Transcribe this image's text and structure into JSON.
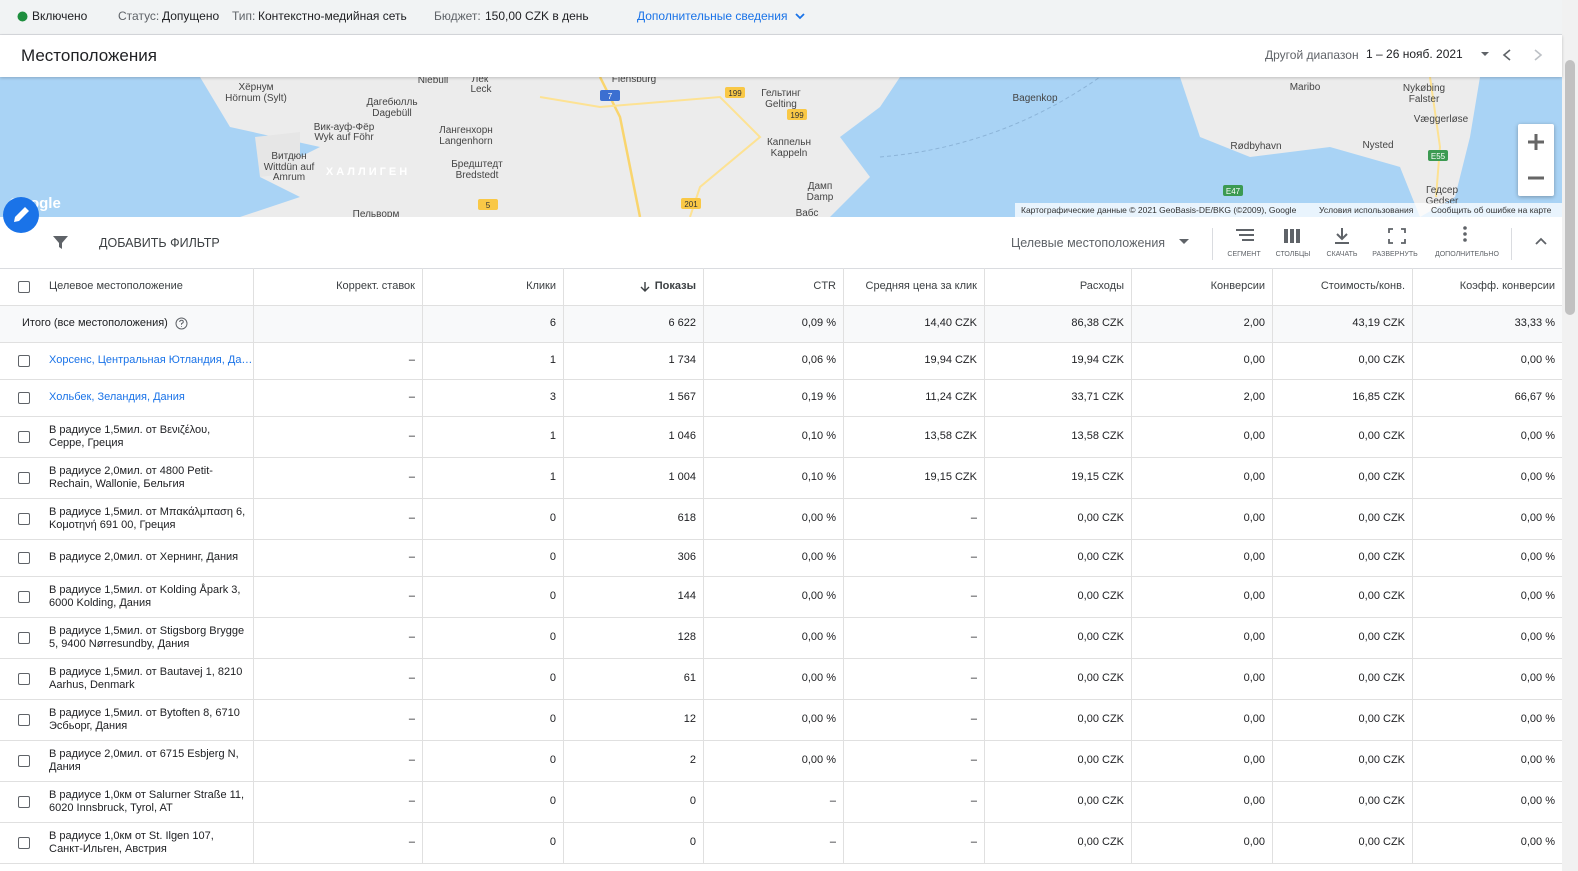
{
  "status_bar": {
    "state": "Включено",
    "status_label": "Статус:",
    "status": "Допущено",
    "type_label": "Тип:",
    "type": "Контекстно-медийная сеть",
    "budget_label": "Бюджет:",
    "budget": "150,00 CZK в день",
    "more": "Дополнительные сведения"
  },
  "header": {
    "title": "Местоположения",
    "range_label": "Другой диапазон",
    "range": "1 – 26 нояб. 2021"
  },
  "map": {
    "labels": [
      "Хёрнум",
      "Hörnum (Sylt)",
      "Niebüll",
      "Лек",
      "Leck",
      "Flensburg",
      "Гельтинг",
      "Gelting",
      "Дагебюлль",
      "Dagebüll",
      "Вик-ауф-Фёр",
      "Wyk auf Föhr",
      "Лангенхорн",
      "Langenhorn",
      "Витдюн",
      "Wittdün auf",
      "Amrum",
      "ХАЛЛИГЕН",
      "Бредштедт",
      "Bredstedt",
      "Каппельн",
      "Kappeln",
      "Дамп",
      "Damp",
      "Пельворм",
      "Вабс",
      "Bagenkop",
      "Maribo",
      "Nykøbing",
      "Falster",
      "Væggerløse",
      "Rødbyhavn",
      "Nysted",
      "Гедсер",
      "Gedser",
      "Google"
    ],
    "roads": [
      "199",
      "199",
      "7",
      "5",
      "201",
      "E47",
      "E55"
    ],
    "attribution": [
      "Картографические данные © 2021 GeoBasis-DE/BKG (©2009), Google",
      "Условия использования",
      "Сообщить об ошибке на карте"
    ]
  },
  "toolbar": {
    "filter": "ДОБАВИТЬ ФИЛЬТР",
    "view": "Целевые местоположения",
    "actions": [
      "СЕГМЕНТ",
      "СТОЛБЦЫ",
      "СКАЧАТЬ",
      "РАЗВЕРНУТЬ",
      "ДОПОЛНИТЕЛЬНО"
    ]
  },
  "table": {
    "columns": [
      "Целевое местоположение",
      "Коррект. ставок",
      "Клики",
      "Показы",
      "CTR",
      "Средняя цена за клик",
      "Расходы",
      "Конверсии",
      "Стоимость/конв.",
      "Коэфф. конверсии"
    ],
    "total": {
      "label": "Итого (все местоположения)",
      "values": [
        "6",
        "6 622",
        "0,09 %",
        "14,40 CZK",
        "86,38 CZK",
        "2,00",
        "43,19 CZK",
        "33,33 %"
      ]
    },
    "rows": [
      {
        "name": "Хорсенс, Центральная Ютландия, Да…",
        "cells": [
          "–",
          "1",
          "1 734",
          "0,06 %",
          "19,94 CZK",
          "19,94 CZK",
          "0,00",
          "0,00 CZK",
          "0,00 %"
        ]
      },
      {
        "name": "Хольбек, Зеландия, Дания",
        "cells": [
          "–",
          "3",
          "1 567",
          "0,19 %",
          "11,24 CZK",
          "33,71 CZK",
          "2,00",
          "16,85 CZK",
          "66,67 %"
        ]
      },
      {
        "name": "В радиусе 1,5мил. от Βενιζέλου, Серре, Греция",
        "cells": [
          "–",
          "1",
          "1 046",
          "0,10 %",
          "13,58 CZK",
          "13,58 CZK",
          "0,00",
          "0,00 CZK",
          "0,00 %"
        ]
      },
      {
        "name": "В радиусе 2,0мил. от 4800 Petit-Rechain, Wallonie, Бельгия",
        "cells": [
          "–",
          "1",
          "1 004",
          "0,10 %",
          "19,15 CZK",
          "19,15 CZK",
          "0,00",
          "0,00 CZK",
          "0,00 %"
        ]
      },
      {
        "name": "В радиусе 1,5мил. от Μπακάλμπαση 6, Κομοτηνή 691 00, Греция",
        "cells": [
          "–",
          "0",
          "618",
          "0,00 %",
          "–",
          "0,00 CZK",
          "0,00",
          "0,00 CZK",
          "0,00 %"
        ]
      },
      {
        "name": "В радиусе 2,0мил. от Хернинг, Дания",
        "cells": [
          "–",
          "0",
          "306",
          "0,00 %",
          "–",
          "0,00 CZK",
          "0,00",
          "0,00 CZK",
          "0,00 %"
        ]
      },
      {
        "name": "В радиусе 1,5мил. от Kolding Åpark 3, 6000 Kolding, Дания",
        "cells": [
          "–",
          "0",
          "144",
          "0,00 %",
          "–",
          "0,00 CZK",
          "0,00",
          "0,00 CZK",
          "0,00 %"
        ]
      },
      {
        "name": "В радиусе 1,5мил. от Stigsborg Brygge 5, 9400 Nørresundby, Дания",
        "cells": [
          "–",
          "0",
          "128",
          "0,00 %",
          "–",
          "0,00 CZK",
          "0,00",
          "0,00 CZK",
          "0,00 %"
        ]
      },
      {
        "name": "В радиусе 1,5мил. от Bautavej 1, 8210 Aarhus, Denmark",
        "cells": [
          "–",
          "0",
          "61",
          "0,00 %",
          "–",
          "0,00 CZK",
          "0,00",
          "0,00 CZK",
          "0,00 %"
        ]
      },
      {
        "name": "В радиусе 1,5мил. от Bytoften 8, 6710 Эсбьорг, Дания",
        "cells": [
          "–",
          "0",
          "12",
          "0,00 %",
          "–",
          "0,00 CZK",
          "0,00",
          "0,00 CZK",
          "0,00 %"
        ]
      },
      {
        "name": "В радиусе 2,0мил. от 6715 Esbjerg N, Дания",
        "cells": [
          "–",
          "0",
          "2",
          "0,00 %",
          "–",
          "0,00 CZK",
          "0,00",
          "0,00 CZK",
          "0,00 %"
        ]
      },
      {
        "name": "В радиусе 1,0км от Salurner Straße 11, 6020 Innsbruck, Tyrol, AT",
        "cells": [
          "–",
          "0",
          "0",
          "–",
          "–",
          "0,00 CZK",
          "0,00",
          "0,00 CZK",
          "0,00 %"
        ]
      },
      {
        "name": "В радиусе 1,0км от St. Ilgen 107, Санкт-Ильген, Австрия",
        "cells": [
          "–",
          "0",
          "0",
          "–",
          "–",
          "0,00 CZK",
          "0,00",
          "0,00 CZK",
          "0,00 %"
        ]
      }
    ]
  }
}
